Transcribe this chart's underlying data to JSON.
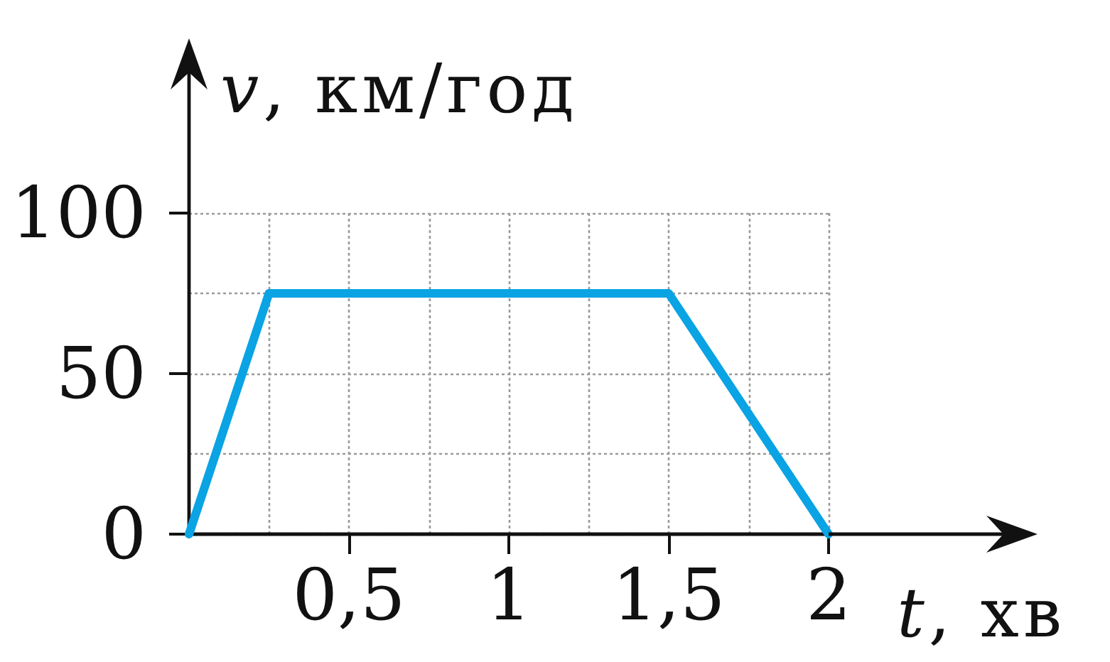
{
  "chart_data": {
    "type": "line",
    "xlabel": "t, хв",
    "ylabel": "v, км/год",
    "x": [
      0,
      0.25,
      1.5,
      2
    ],
    "values": [
      0,
      75,
      75,
      0
    ],
    "color": "#0aa3e3",
    "xlim": [
      0,
      2
    ],
    "ylim": [
      0,
      100
    ],
    "xticks": [
      {
        "value": 0.25,
        "label": null
      },
      {
        "value": 0.5,
        "label": "0,5"
      },
      {
        "value": 0.75,
        "label": null
      },
      1,
      {
        "value": 1.25,
        "label": null
      },
      {
        "value": 1.5,
        "label": "1,5"
      },
      {
        "value": 1.75,
        "label": null
      },
      2
    ],
    "yticks": [
      0,
      {
        "value": 25,
        "label": null
      },
      50,
      {
        "value": 75,
        "label": null
      },
      100
    ],
    "grid": true,
    "marker": "none",
    "line_style": "solid"
  }
}
